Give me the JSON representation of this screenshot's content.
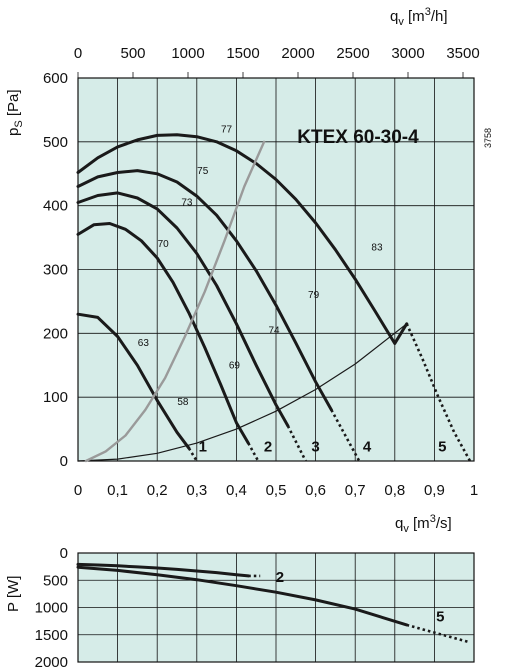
{
  "colors": {
    "plot_bg": "#d6ece8",
    "grid": "#111111",
    "curve": "#1a1a1a",
    "efficiency": "#9a9a9a"
  },
  "chart_data": [
    {
      "type": "line",
      "title": "KTEX 60-30-4",
      "code": "3758",
      "xlabel": "q_v [m^3/s]",
      "xlabel_top": "q_v [m^3/h]",
      "ylabel": "p_s [Pa]",
      "xlim": [
        0,
        1
      ],
      "ylim": [
        0,
        600
      ],
      "xlim_top": [
        0,
        3600
      ],
      "x_ticks": [
        "0",
        "0,1",
        "0,2",
        "0,3",
        "0,4",
        "0,5",
        "0,6",
        "0,7",
        "0,8",
        "0,9",
        "1"
      ],
      "x_ticks_top": [
        "0",
        "500",
        "1000",
        "1500",
        "2000",
        "2500",
        "3000",
        "3500"
      ],
      "y_ticks": [
        "0",
        "100",
        "200",
        "300",
        "400",
        "500",
        "600"
      ],
      "grid": true,
      "series": [
        {
          "name": "1",
          "x": [
            0,
            0.05,
            0.1,
            0.15,
            0.2,
            0.25,
            0.28
          ],
          "y": [
            230,
            225,
            195,
            150,
            95,
            45,
            20
          ],
          "dotted_x": [
            0.28,
            0.3
          ],
          "dotted_y": [
            20,
            0
          ]
        },
        {
          "name": "2",
          "x": [
            0,
            0.04,
            0.08,
            0.12,
            0.16,
            0.2,
            0.24,
            0.28,
            0.32,
            0.36,
            0.4,
            0.43
          ],
          "y": [
            355,
            370,
            372,
            363,
            345,
            318,
            280,
            232,
            178,
            120,
            60,
            28
          ],
          "dotted_x": [
            0.43,
            0.455
          ],
          "dotted_y": [
            28,
            0
          ]
        },
        {
          "name": "3",
          "x": [
            0,
            0.05,
            0.1,
            0.15,
            0.2,
            0.25,
            0.3,
            0.35,
            0.4,
            0.45,
            0.5,
            0.53
          ],
          "y": [
            405,
            416,
            420,
            412,
            395,
            365,
            325,
            275,
            215,
            150,
            88,
            55
          ],
          "dotted_x": [
            0.53,
            0.575
          ],
          "dotted_y": [
            55,
            0
          ]
        },
        {
          "name": "4",
          "x": [
            0,
            0.05,
            0.1,
            0.15,
            0.2,
            0.25,
            0.3,
            0.35,
            0.4,
            0.45,
            0.5,
            0.55,
            0.6,
            0.64
          ],
          "y": [
            430,
            445,
            452,
            455,
            450,
            437,
            415,
            385,
            345,
            298,
            244,
            185,
            124,
            80
          ],
          "dotted_x": [
            0.64,
            0.71
          ],
          "dotted_y": [
            80,
            0
          ]
        },
        {
          "name": "5",
          "x": [
            0,
            0.05,
            0.1,
            0.15,
            0.2,
            0.25,
            0.3,
            0.35,
            0.4,
            0.45,
            0.5,
            0.55,
            0.6,
            0.65,
            0.7,
            0.75,
            0.8,
            0.83
          ],
          "y": [
            452,
            475,
            492,
            503,
            510,
            511,
            508,
            500,
            486,
            466,
            441,
            410,
            373,
            331,
            285,
            235,
            184,
            215
          ],
          "dotted_x": [
            0.83,
            0.87,
            0.91,
            0.95,
            0.99
          ],
          "dotted_y": [
            215,
            160,
            100,
            45,
            0
          ]
        },
        {
          "name": "system",
          "x": [
            0,
            0.1,
            0.2,
            0.3,
            0.4,
            0.5,
            0.6,
            0.7,
            0.83
          ],
          "y": [
            0,
            3,
            12,
            28,
            50,
            78,
            112,
            152,
            215
          ]
        },
        {
          "name": "efficiency",
          "x": [
            0.02,
            0.07,
            0.12,
            0.17,
            0.22,
            0.27,
            0.32,
            0.37,
            0.42,
            0.47
          ],
          "y": [
            0,
            15,
            40,
            80,
            130,
            195,
            265,
            345,
            430,
            500
          ]
        }
      ],
      "step_labels": [
        {
          "text": "1",
          "x": 0.315,
          "y": 15
        },
        {
          "text": "2",
          "x": 0.48,
          "y": 15
        },
        {
          "text": "3",
          "x": 0.6,
          "y": 15
        },
        {
          "text": "4",
          "x": 0.73,
          "y": 15
        },
        {
          "text": "5",
          "x": 0.92,
          "y": 15
        }
      ],
      "efficiency_labels": [
        {
          "text": "77",
          "x": 0.375,
          "y": 515
        },
        {
          "text": "75",
          "x": 0.315,
          "y": 450
        },
        {
          "text": "73",
          "x": 0.275,
          "y": 400
        },
        {
          "text": "70",
          "x": 0.215,
          "y": 335
        },
        {
          "text": "63",
          "x": 0.165,
          "y": 180
        },
        {
          "text": "58",
          "x": 0.265,
          "y": 88
        },
        {
          "text": "69",
          "x": 0.395,
          "y": 145
        },
        {
          "text": "74",
          "x": 0.495,
          "y": 200
        },
        {
          "text": "79",
          "x": 0.595,
          "y": 255
        },
        {
          "text": "83",
          "x": 0.755,
          "y": 330
        }
      ]
    },
    {
      "type": "line",
      "xlabel": "",
      "ylabel": "P [W]",
      "xlim": [
        0,
        1
      ],
      "ylim": [
        0,
        2000
      ],
      "y_ticks": [
        "0",
        "500",
        "1000",
        "1500",
        "2000"
      ],
      "grid": true,
      "series": [
        {
          "name": "2",
          "x": [
            0,
            0.05,
            0.1,
            0.15,
            0.2,
            0.25,
            0.3,
            0.35,
            0.4,
            0.43
          ],
          "y": [
            210,
            220,
            235,
            255,
            275,
            300,
            330,
            360,
            400,
            420
          ],
          "dotted_x": [
            0.43,
            0.46
          ],
          "dotted_y": [
            420,
            420
          ]
        },
        {
          "name": "5",
          "x": [
            0,
            0.1,
            0.2,
            0.3,
            0.4,
            0.5,
            0.6,
            0.7,
            0.83
          ],
          "y": [
            260,
            320,
            400,
            490,
            600,
            720,
            860,
            1030,
            1320
          ],
          "dotted_x": [
            0.83,
            0.87,
            0.91,
            0.95,
            0.99
          ],
          "dotted_y": [
            1320,
            1400,
            1480,
            1560,
            1640
          ]
        }
      ],
      "step_labels": [
        {
          "text": "2",
          "x": 0.51,
          "y": 420
        },
        {
          "text": "5",
          "x": 0.915,
          "y": 1150
        }
      ]
    }
  ]
}
